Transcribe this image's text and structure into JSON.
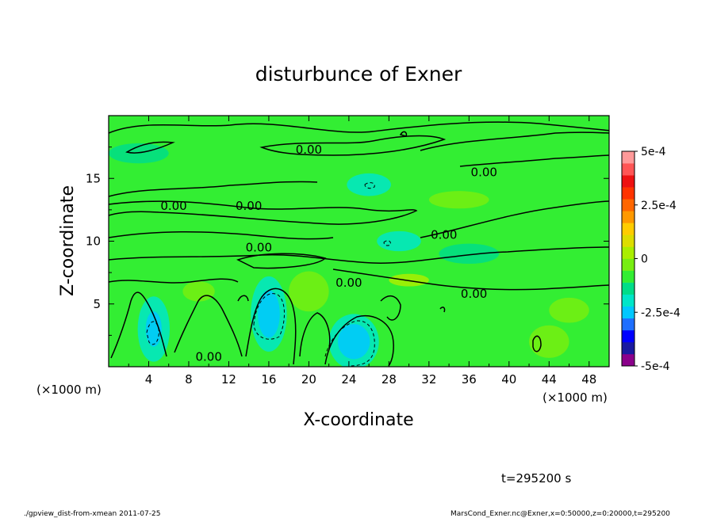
{
  "chart_data": {
    "type": "heatmap",
    "title": "disturbunce of Exner",
    "xlabel": "X-coordinate",
    "ylabel": "Z-coordinate",
    "x_unit": "(×1000 m)",
    "y_unit": "(×1000 m)",
    "xlim": [
      0,
      50
    ],
    "ylim": [
      0,
      20
    ],
    "x_ticks": [
      "4",
      "8",
      "12",
      "16",
      "20",
      "24",
      "28",
      "32",
      "36",
      "40",
      "44",
      "48"
    ],
    "y_ticks": [
      "5",
      "10",
      "15"
    ],
    "contour_labels": [
      {
        "text": "0.00",
        "x": 20,
        "z": 17.3
      },
      {
        "text": "0.00",
        "x": 37.5,
        "z": 15.5
      },
      {
        "text": "0.00",
        "x": 6.5,
        "z": 12.8
      },
      {
        "text": "0.00",
        "x": 14,
        "z": 12.8
      },
      {
        "text": "0.00",
        "x": 33.5,
        "z": 10.5
      },
      {
        "text": "0.00",
        "x": 15,
        "z": 9.5
      },
      {
        "text": "0.00",
        "x": 24,
        "z": 6.7
      },
      {
        "text": "0.00",
        "x": 36.5,
        "z": 5.8
      },
      {
        "text": "0.00",
        "x": 10,
        "z": 0.8
      }
    ],
    "colorbar": {
      "min": -0.0005,
      "max": 0.0005,
      "labels": [
        "5e-4",
        "2.5e-4",
        "0",
        "-2.5e-4",
        "-5e-4"
      ],
      "colors": [
        "#8b008b",
        "#1a1aa0",
        "#0000ff",
        "#1e6fff",
        "#00c8ff",
        "#00e6c8",
        "#00dd88",
        "#33ee33",
        "#77ee11",
        "#aaee00",
        "#dddd00",
        "#ffcc00",
        "#ff9900",
        "#ff6600",
        "#ff3300",
        "#ee1111",
        "#ff5555",
        "#ff9999"
      ]
    },
    "grid": false
  },
  "footer": {
    "time": "t=295200 s",
    "script": "./gpview_dist-from-xmean   2011-07-25",
    "source": "MarsCond_Exner.nc@Exner,x=0:50000,z=0:20000,t=295200"
  }
}
